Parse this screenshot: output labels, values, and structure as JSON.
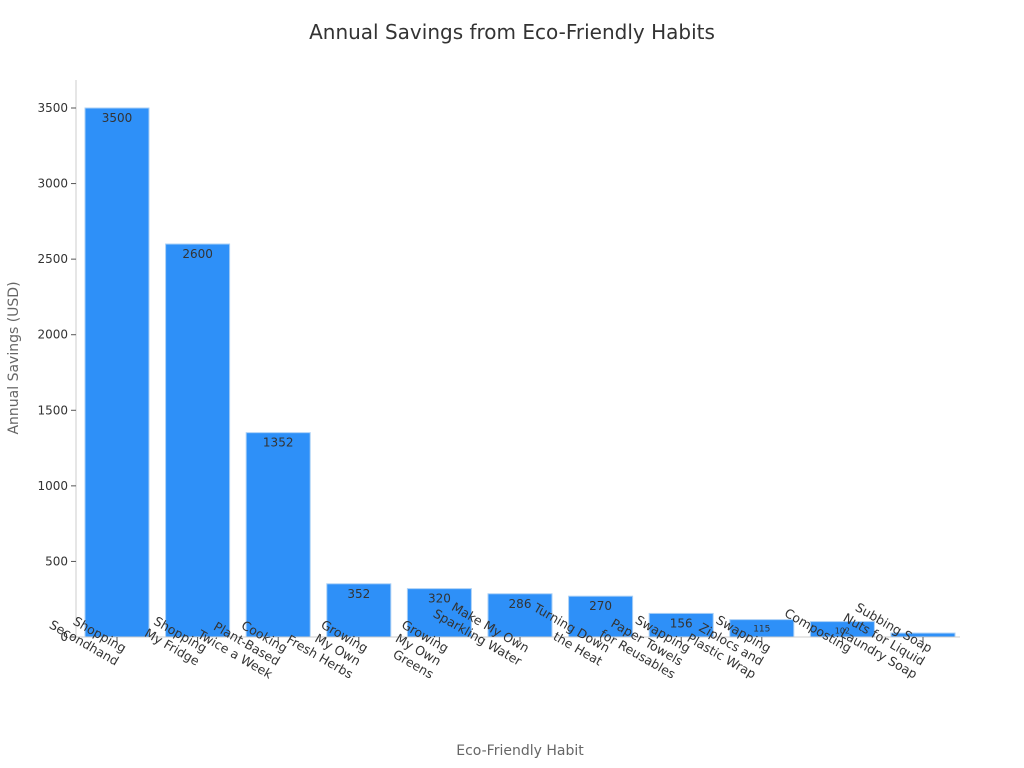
{
  "chart_data": {
    "type": "bar",
    "title": "Annual Savings from Eco-Friendly Habits",
    "xlabel": "Eco-Friendly Habit",
    "ylabel": "Annual Savings (USD)",
    "ylim": [
      0,
      3680
    ],
    "yticks": [
      0,
      500,
      1000,
      1500,
      2000,
      2500,
      3000,
      3500
    ],
    "grid": false,
    "legend": null,
    "bar_color": "#2e90f8",
    "bar_edge_color": "#a9cff6",
    "categories": [
      "Shopping Secondhand",
      "Shopping My Fridge",
      "Cooking Plant-Based Twice a Week",
      "Growing My Own Fresh Herbs",
      "Growing My Own Greens",
      "Make My Own Sparkling Water",
      "Turning Down the Heat",
      "Swapping Paper Towels for Reusables",
      "Swapping Ziplocs and Plastic Wrap",
      "Composting",
      "Subbing Soap Nuts for Liquid Laundry Soap"
    ],
    "category_label_lines": [
      [
        "Shopping",
        "Secondhand"
      ],
      [
        "Shopping",
        "My Fridge"
      ],
      [
        "Cooking",
        "Plant-Based",
        "Twice a Week"
      ],
      [
        "Growing",
        "My Own",
        "Fresh Herbs"
      ],
      [
        "Growing",
        "My Own",
        "Greens"
      ],
      [
        "Make My Own",
        "Sparkling Water"
      ],
      [
        "Turning Down",
        "the Heat"
      ],
      [
        "Swapping",
        "Paper Towels",
        "for Reusables"
      ],
      [
        "Swapping",
        "Ziplocs and",
        "Plastic Wrap"
      ],
      [
        "Composting"
      ],
      [
        "Subbing Soap",
        "Nuts for Liquid",
        "Laundry Soap"
      ]
    ],
    "values": [
      3500,
      2600,
      1352,
      352,
      320,
      286,
      270,
      156,
      115,
      102,
      26
    ],
    "data_labels": [
      "3500",
      "2600",
      "1352",
      "352",
      "320",
      "286",
      "270",
      "156",
      "115",
      "102",
      ""
    ]
  }
}
